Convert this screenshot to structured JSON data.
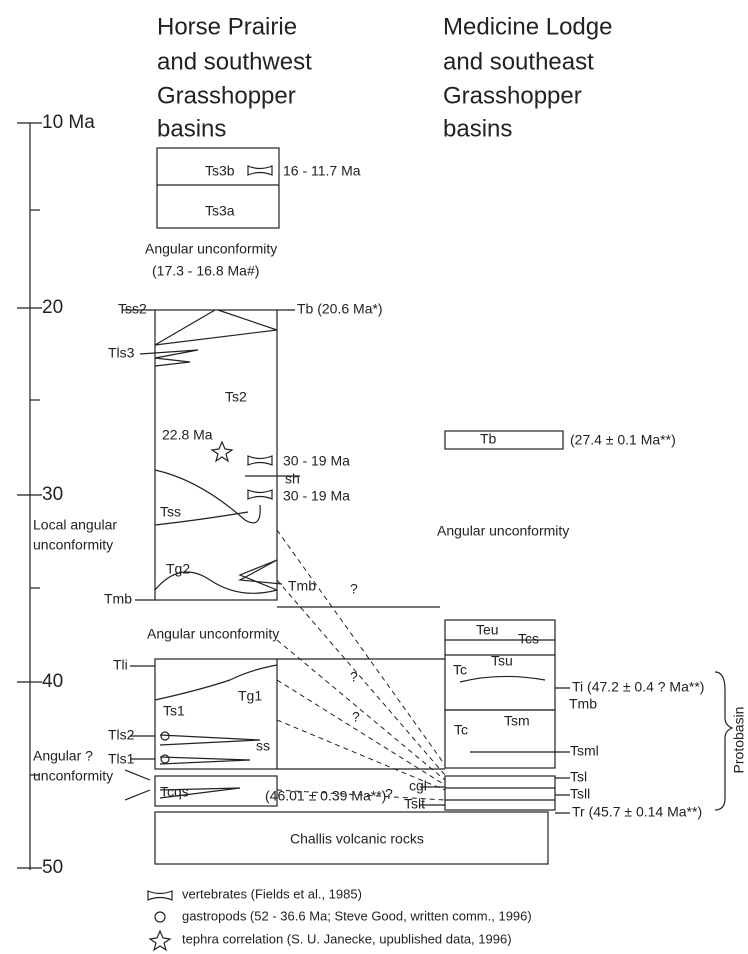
{
  "headers": {
    "left": [
      "Horse Prairie",
      "and southwest",
      "Grasshopper",
      "basins"
    ],
    "right": [
      "Medicine Lodge",
      "and southeast",
      "Grasshopper",
      "basins"
    ]
  },
  "time_scale": [
    "10 Ma",
    "20",
    "30",
    "40",
    "50"
  ],
  "left_labels": [
    "Ts3b",
    "16 - 11.7 Ma",
    "Ts3a",
    "Angular unconformity",
    "(17.3 - 16.8 Ma#)",
    "Tss2",
    "Tb (20.6 Ma*)",
    "Tls3",
    "Ts2",
    "22.8 Ma",
    "30 - 19 Ma",
    "sh",
    "30 - 19 Ma",
    "Tss",
    "Local angular",
    "unconformity",
    "Tg2",
    "Tmb",
    "Tmb",
    "?",
    "Angular unconformity",
    "Tli",
    "Tg1",
    "Ts1",
    "Tls2",
    "ss",
    "Tls1",
    "Angular ?",
    "unconformity",
    "Tcqs",
    "(46.01 ± 0.39 Ma**)",
    "?",
    "Challis volcanic rocks",
    "?",
    "?"
  ],
  "right_labels": [
    "Tb",
    "(27.4 ± 0.1 Ma**)",
    "Angular unconformity",
    "Teu",
    "Tcs",
    "Tc",
    "Tsu",
    "Ti (47.2 ± 0.4 ? Ma**)",
    "Tmb",
    "Tc",
    "Tsm",
    "Tsml",
    "cgl",
    "Tsl",
    "Tsll",
    "Tslt",
    "Tr (45.7 ± 0.14 Ma**)",
    "Protobasin"
  ],
  "legend": [
    "vertebrates (Fields et al., 1985)",
    "gastropods (52 - 36.6 Ma; Steve Good, written comm., 1996)",
    "tephra correlation (S. U. Janecke, upublished data, 1996)"
  ]
}
